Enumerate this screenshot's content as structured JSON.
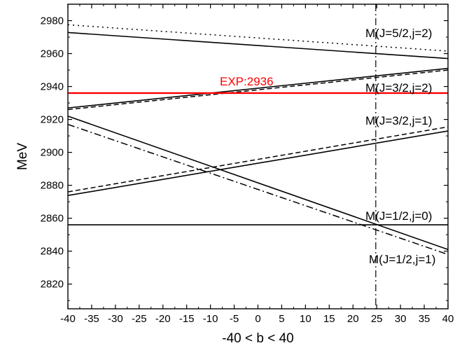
{
  "chart_data": {
    "type": "line",
    "title": "",
    "xlabel": "-40 < b < 40",
    "ylabel": "MeV",
    "xlim": [
      -40,
      40
    ],
    "ylim": [
      2805,
      2990
    ],
    "x_ticks": [
      -40,
      -35,
      -30,
      -25,
      -20,
      -15,
      -10,
      -5,
      0,
      5,
      10,
      15,
      20,
      25,
      30,
      35,
      40
    ],
    "y_ticks": [
      2820,
      2840,
      2860,
      2880,
      2900,
      2920,
      2940,
      2960,
      2980
    ],
    "grid": false,
    "legend": "none",
    "vertical_marker": {
      "x": 24.8,
      "style": "dash-dot",
      "color": "#000000"
    },
    "series": [
      {
        "name": "M(J=5/2,j=2)",
        "style": "solid",
        "color": "#000000",
        "x": [
          -40,
          40
        ],
        "values": [
          2972.8,
          2957.0
        ]
      },
      {
        "style": "dotted",
        "color": "#000000",
        "x": [
          -40,
          40
        ],
        "values": [
          2977.5,
          2961.5
        ]
      },
      {
        "name": "M(J=3/2,j=2)",
        "style": "solid",
        "color": "#000000",
        "x": [
          -40,
          40
        ],
        "values": [
          2927.0,
          2951.0
        ]
      },
      {
        "style": "dashed",
        "color": "#000000",
        "x": [
          -40,
          40
        ],
        "values": [
          2926.0,
          2950.0
        ]
      },
      {
        "name": "M(J=3/2,j=1)",
        "style": "solid",
        "color": "#000000",
        "x": [
          -40,
          40
        ],
        "values": [
          2873.8,
          2913.0
        ]
      },
      {
        "style": "dashed",
        "color": "#000000",
        "x": [
          -40,
          40
        ],
        "values": [
          2876.0,
          2915.5
        ]
      },
      {
        "name": "M(J=1/2,j=0)",
        "style": "solid",
        "color": "#000000",
        "x": [
          -40,
          40
        ],
        "values": [
          2856.0,
          2856.0
        ]
      },
      {
        "name": "M(J=1/2,j=1)",
        "style": "solid",
        "color": "#000000",
        "x": [
          -40,
          40
        ],
        "values": [
          2922.0,
          2841.0
        ]
      },
      {
        "style": "dash-dot",
        "color": "#000000",
        "x": [
          -40,
          40
        ],
        "values": [
          2917.0,
          2838.0
        ]
      },
      {
        "name": "EXP:2936",
        "style": "solid",
        "color": "#ff0000",
        "x": [
          -40,
          40
        ],
        "values": [
          2936.0,
          2936.0
        ]
      }
    ]
  }
}
